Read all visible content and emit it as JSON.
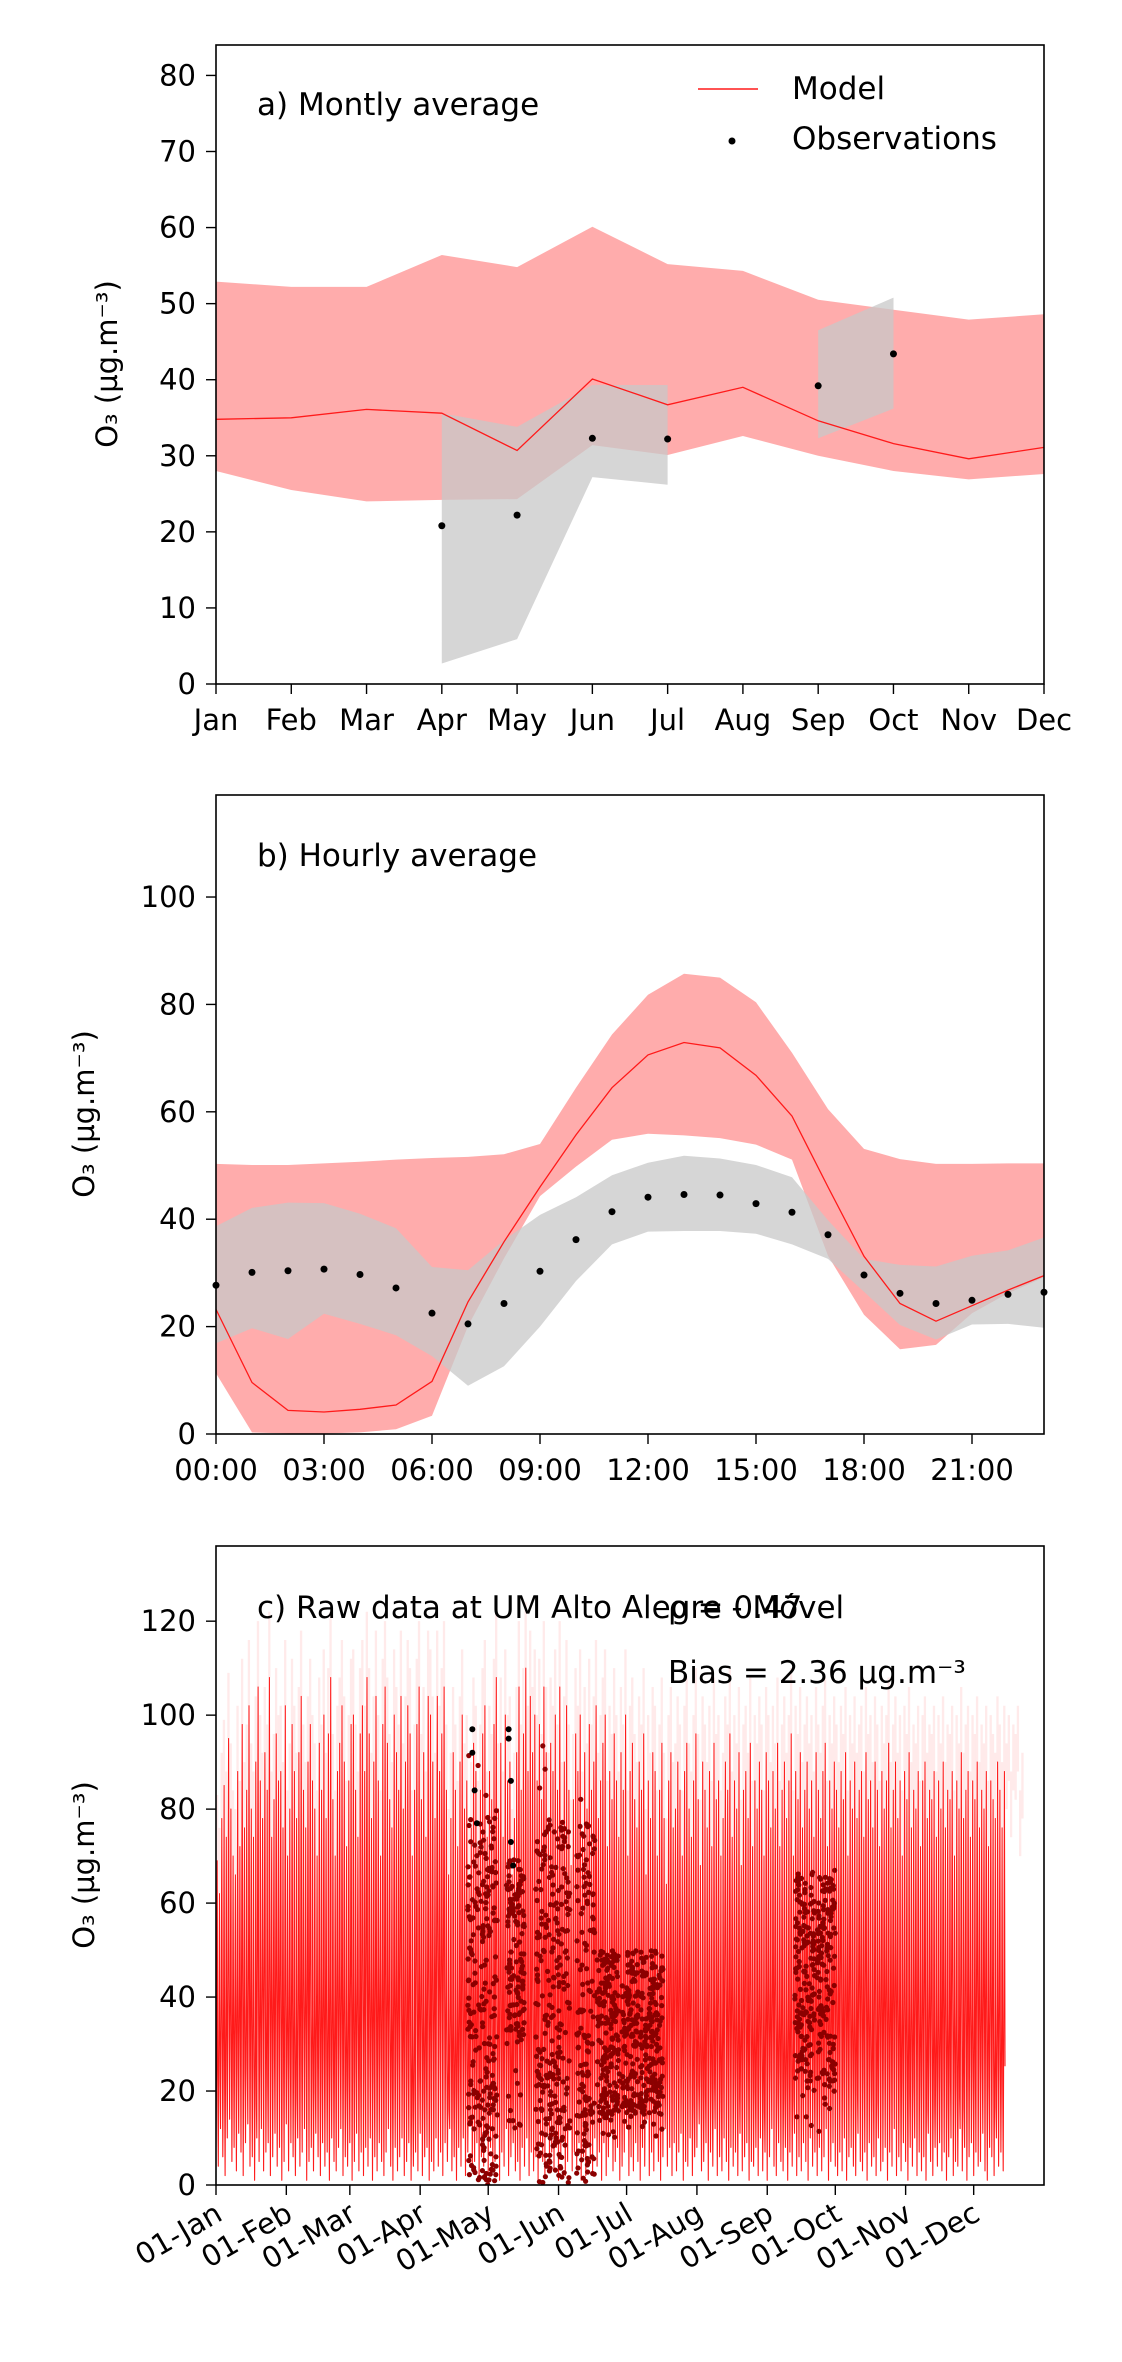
{
  "figure": {
    "colors": {
      "model": "#ff1a1a",
      "model_band": "#ff9e9e",
      "obs": "#000000",
      "obs_band": "#c8c8c8",
      "raw_obs": "#8b0000"
    }
  },
  "chart_data": [
    {
      "type": "line",
      "title": "a) Montly average",
      "ylabel": "O₃ (µg.m⁻³)",
      "ylim": [
        0,
        84
      ],
      "yticks": [
        0,
        10,
        20,
        30,
        40,
        50,
        60,
        70,
        80
      ],
      "categories": [
        "Jan",
        "Feb",
        "Mar",
        "Apr",
        "May",
        "Jun",
        "Jul",
        "Aug",
        "Sep",
        "Oct",
        "Nov",
        "Dec"
      ],
      "legend": {
        "placement": "top-right",
        "entries": [
          "Model",
          "Observations"
        ]
      },
      "series": [
        {
          "name": "Model",
          "kind": "line",
          "values": [
            34.8,
            35,
            36.1,
            35.6,
            30.7,
            40.1,
            36.7,
            39,
            34.6,
            31.6,
            29.6,
            31.1
          ]
        },
        {
          "kind": "band",
          "of": "Model",
          "upper": [
            52.9,
            52.2,
            52.2,
            56.4,
            54.8,
            60.1,
            55.2,
            54.3,
            50.5,
            49.2,
            47.9,
            48.6
          ],
          "lower": [
            28,
            25.5,
            24,
            24.2,
            24.3,
            31.4,
            30.1,
            32.6,
            30,
            28,
            26.9,
            27.6
          ]
        },
        {
          "name": "Observations",
          "kind": "scatter",
          "x": [
            "Apr",
            "May",
            "Jun",
            "Jul",
            "Sep",
            "Oct"
          ],
          "values": [
            20.8,
            22.2,
            32.3,
            32.2,
            39.2,
            43.4
          ]
        },
        {
          "kind": "band",
          "of": "Observations",
          "x": [
            "Apr",
            "May",
            "Jun",
            "Jul",
            "Sep",
            "Oct"
          ],
          "upper": [
            35.6,
            33.8,
            39.3,
            39.3,
            46.5,
            50.8
          ],
          "lower": [
            2.7,
            5.9,
            27.2,
            26.2,
            32.3,
            36.2
          ]
        }
      ]
    },
    {
      "type": "line",
      "title": "b) Hourly average",
      "ylabel": "O₃ (µg.m⁻³)",
      "ylim": [
        0,
        119
      ],
      "yticks": [
        0,
        20,
        40,
        60,
        80,
        100
      ],
      "xticks": [
        "00:00",
        "03:00",
        "06:00",
        "09:00",
        "12:00",
        "15:00",
        "18:00",
        "21:00"
      ],
      "x": [
        0,
        1,
        2,
        3,
        4,
        5,
        6,
        7,
        8,
        9,
        10,
        11,
        12,
        13,
        14,
        15,
        16,
        17,
        18,
        19,
        20,
        21,
        22,
        23
      ],
      "series": [
        {
          "name": "Model",
          "kind": "line",
          "values": [
            23.2,
            9.6,
            4.4,
            4.1,
            4.6,
            5.4,
            9.8,
            24.6,
            35.8,
            46,
            55.7,
            64.5,
            70.6,
            72.9,
            71.9,
            66.8,
            59.2,
            46,
            33.1,
            24.3,
            21,
            23.9,
            26.8,
            29.5
          ]
        },
        {
          "kind": "band",
          "of": "Model",
          "upper": [
            50.3,
            50.1,
            50.1,
            50.4,
            50.7,
            51.1,
            51.4,
            51.6,
            52.1,
            54,
            64.5,
            74.4,
            81.8,
            85.7,
            85,
            80.4,
            71,
            60.5,
            53.1,
            51.2,
            50.3,
            50.3,
            50.4,
            50.4
          ],
          "lower": [
            11.3,
            0.3,
            0.1,
            0.1,
            0.3,
            0.9,
            3.4,
            20.1,
            32.7,
            44.3,
            49.8,
            54.8,
            55.9,
            55.6,
            55.1,
            53.9,
            51.1,
            33.2,
            22.2,
            15.8,
            16.6,
            22.5,
            26.2,
            29.2
          ]
        },
        {
          "name": "Observations",
          "kind": "scatter",
          "values": [
            27.7,
            30.1,
            30.4,
            30.7,
            29.7,
            27.2,
            22.5,
            20.5,
            24.3,
            30.3,
            36.2,
            41.4,
            44.1,
            44.6,
            44.5,
            42.9,
            41.3,
            37.1,
            29.6,
            26.2,
            24.3,
            24.9,
            26,
            26.4
          ]
        },
        {
          "kind": "band",
          "of": "Observations",
          "upper": [
            38.7,
            42.1,
            43.1,
            43,
            41,
            38.3,
            31.1,
            30.5,
            36.1,
            40.8,
            44.1,
            48.2,
            50.5,
            51.8,
            51.3,
            50.1,
            47.8,
            39.8,
            32.6,
            31.5,
            31.2,
            33.2,
            34.2,
            36.6
          ],
          "lower": [
            16.9,
            19.7,
            17.7,
            22.4,
            20.5,
            18.4,
            14.5,
            9,
            12.6,
            20,
            28.5,
            35.3,
            37.7,
            37.8,
            37.8,
            37.3,
            35.3,
            32.6,
            26.5,
            20.3,
            17.6,
            20.4,
            20.5,
            19.8
          ]
        }
      ]
    },
    {
      "type": "line",
      "title": "c) Raw data at UM Alto Alegre - Móvel",
      "annotations": [
        "ρ = 0.47",
        "Bias = 2.36 µg.m⁻³"
      ],
      "ylabel": "O₃ (µg.m⁻³)",
      "ylim": [
        0,
        136
      ],
      "yticks": [
        0,
        20,
        40,
        60,
        80,
        100,
        120
      ],
      "xticks": [
        "01-Jan",
        "01-Feb",
        "01-Mar",
        "01-Apr",
        "01-May",
        "01-Jun",
        "01-Jul",
        "01-Aug",
        "01-Sep",
        "01-Oct",
        "01-Nov",
        "01-Dec"
      ],
      "xlim_days": [
        0,
        365
      ],
      "series": [
        {
          "name": "Model",
          "kind": "line",
          "daily_max": [
            69,
            62,
            78,
            85,
            74,
            95,
            80,
            70,
            66,
            88,
            72,
            98,
            76,
            84,
            102,
            80,
            74,
            90,
            106,
            86,
            78,
            92,
            84,
            108,
            74,
            82,
            96,
            86,
            88,
            76,
            102,
            70,
            80,
            98,
            88,
            78,
            92,
            104,
            84,
            76,
            90,
            98,
            86,
            80,
            70,
            94,
            84,
            100,
            78,
            96,
            108,
            82,
            70,
            88,
            94,
            102,
            90,
            72,
            86,
            98,
            100,
            84,
            74,
            96,
            102,
            88,
            108,
            96,
            78,
            90,
            104,
            86,
            70,
            98,
            106,
            94,
            82,
            76,
            100,
            92,
            84,
            104,
            80,
            90,
            102,
            96,
            70,
            84,
            98,
            106,
            82,
            92,
            74,
            104,
            100,
            90,
            78,
            104,
            88,
            96,
            106,
            84,
            66,
            78,
            92,
            84,
            72,
            90,
            100,
            80,
            86,
            64,
            76,
            94,
            88,
            72,
            84,
            96,
            102,
            74,
            88,
            82,
            98,
            108,
            80,
            94,
            74,
            100,
            86,
            90,
            66,
            78,
            92,
            106,
            84,
            96,
            110,
            88,
            104,
            92,
            100,
            86,
            98,
            82,
            106,
            92,
            78,
            94,
            88,
            100,
            84,
            106,
            76,
            90,
            102,
            84,
            68,
            82,
            96,
            88,
            100,
            74,
            92,
            80,
            98,
            84,
            90,
            102,
            78,
            86,
            94,
            100,
            72,
            88,
            82,
            96,
            86,
            74,
            92,
            84,
            100,
            70,
            88,
            94,
            82,
            76,
            90,
            84,
            96,
            66,
            86,
            78,
            92,
            88,
            70,
            84,
            94,
            78,
            64,
            86,
            92,
            76,
            80,
            90,
            84,
            70,
            88,
            94,
            80,
            74,
            86,
            96,
            82,
            68,
            90,
            84,
            76,
            88,
            72,
            94,
            82,
            86,
            70,
            78,
            90,
            84,
            96,
            74,
            86,
            80,
            92,
            68,
            84,
            88,
            78,
            94,
            72,
            86,
            80,
            90,
            84,
            70,
            92,
            86,
            76,
            88,
            80,
            94,
            72,
            84,
            90,
            78,
            86,
            96,
            70,
            88,
            82,
            92,
            76,
            84,
            90,
            80,
            86,
            74,
            92,
            84,
            78,
            88,
            94,
            72,
            86,
            80,
            90,
            84,
            76,
            88,
            82,
            92,
            70,
            86,
            80,
            90,
            78,
            84,
            88,
            74,
            92,
            82,
            86,
            76,
            90,
            84,
            72,
            88,
            80,
            86,
            94,
            76,
            84,
            90,
            78,
            86,
            70,
            88,
            82,
            92,
            76,
            84,
            80,
            88,
            72,
            86,
            90,
            78,
            84,
            82,
            88,
            74,
            86,
            80,
            90,
            76,
            84,
            82,
            88,
            70,
            86,
            80,
            92,
            78,
            84,
            88,
            74,
            86,
            82,
            90,
            76,
            84,
            80,
            88,
            72,
            86,
            82,
            78,
            90,
            84,
            76,
            88,
            80,
            86,
            74,
            84,
            82,
            88,
            70,
            78
          ],
          "daily_min": [
            8,
            4,
            12,
            6,
            2,
            10,
            14,
            5,
            8,
            3,
            11,
            7,
            2,
            9,
            13,
            4,
            6,
            1,
            10,
            5,
            12,
            3,
            7,
            9,
            2,
            6,
            11,
            4,
            8,
            1,
            5,
            13,
            3,
            9,
            6,
            2,
            10,
            4,
            7,
            12,
            1,
            5,
            8,
            3,
            11,
            6,
            2,
            9,
            4,
            7,
            1,
            10,
            5,
            3,
            8,
            12,
            2,
            6,
            4,
            9,
            1,
            5,
            11,
            3,
            7,
            2,
            8,
            4,
            10,
            1,
            6,
            3,
            9,
            5,
            2,
            7,
            12,
            4,
            1,
            8,
            3,
            6,
            10,
            2,
            5,
            9,
            1,
            4,
            7,
            3,
            11,
            2,
            6,
            8,
            1,
            5,
            3,
            10,
            4,
            7,
            2,
            9,
            5,
            12,
            3,
            6,
            1,
            8,
            4,
            10,
            2,
            7,
            14,
            3,
            5,
            9,
            1,
            6,
            4,
            11,
            2,
            8,
            3,
            5,
            10,
            1,
            7,
            4,
            12,
            2,
            6,
            9,
            3,
            5,
            1,
            8,
            4,
            10,
            2,
            7,
            3,
            6,
            1,
            9,
            5,
            2,
            11,
            4,
            7,
            3,
            8,
            1,
            6,
            10,
            2,
            5,
            12,
            3,
            7,
            4,
            9,
            1,
            6,
            2,
            8,
            5,
            3,
            10,
            4,
            7,
            1,
            9,
            2,
            6,
            11,
            3,
            5,
            8,
            1,
            4,
            7,
            12,
            2,
            6,
            3,
            9,
            5,
            1,
            8,
            4,
            14,
            2,
            7,
            3,
            10,
            5,
            1,
            6,
            12,
            4,
            8,
            2,
            9,
            3,
            7,
            11,
            1,
            5,
            4,
            10,
            2,
            6,
            8,
            13,
            3,
            5,
            9,
            1,
            7,
            4,
            12,
            2,
            6,
            3,
            10,
            5,
            1,
            8,
            4,
            7,
            2,
            11,
            3,
            6,
            9,
            1,
            5,
            4,
            8,
            2,
            10,
            3,
            7,
            1,
            6,
            12,
            4,
            2,
            9,
            5,
            3,
            8,
            1,
            7,
            4,
            11,
            2,
            6,
            3,
            9,
            5,
            1,
            10,
            4,
            7,
            2,
            8,
            3,
            6,
            12,
            1,
            5,
            9,
            4,
            2,
            7,
            3,
            10,
            1,
            6,
            8,
            4,
            2,
            11,
            5,
            3,
            7,
            1,
            9,
            4,
            6,
            2,
            10,
            3,
            5,
            8,
            1,
            7,
            4,
            12,
            2,
            6,
            3,
            9,
            5,
            1,
            8,
            4,
            10,
            2,
            7,
            3,
            6,
            1,
            11,
            5,
            2,
            8,
            4,
            9,
            3,
            7,
            1,
            6,
            10,
            2,
            5,
            4,
            12,
            3,
            8,
            1,
            6,
            9,
            2,
            7,
            4,
            5,
            11,
            3,
            1,
            8,
            6,
            2,
            10,
            4,
            7,
            3
          ]
        },
        {
          "name": "Observations",
          "kind": "scatter",
          "coverage_days": [
            [
              111,
              124
            ],
            [
              128,
              136
            ],
            [
              141,
              156
            ],
            [
              159,
              167
            ],
            [
              168,
              178
            ],
            [
              179,
              186
            ],
            [
              187,
              197
            ],
            [
              255,
              264
            ],
            [
              265,
              273
            ]
          ]
        }
      ]
    }
  ]
}
